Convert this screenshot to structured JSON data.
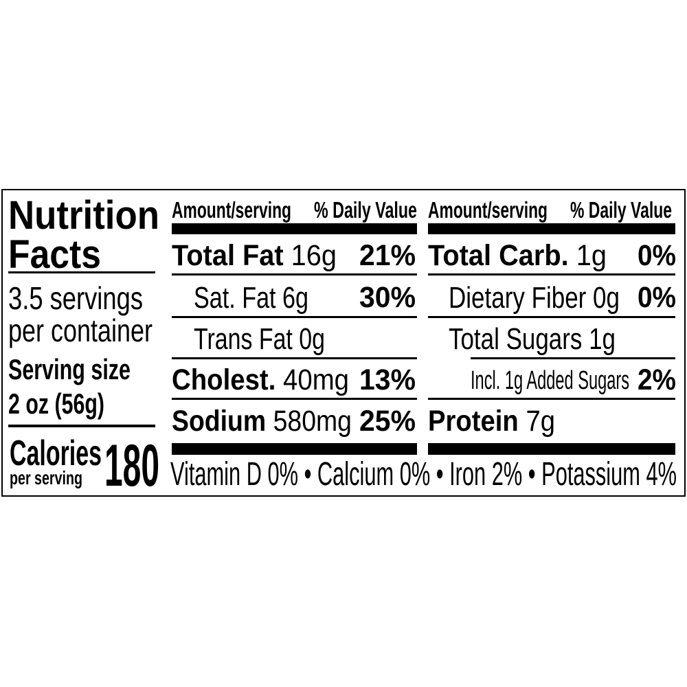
{
  "title": {
    "line1": "Nutrition",
    "line2": "Facts"
  },
  "servings": {
    "count": "3.5 servings",
    "per_container": "per container",
    "size_label": "Serving size",
    "size_value": "2 oz (56g)"
  },
  "calories": {
    "label": "Calories",
    "sub": "per serving",
    "value": "180"
  },
  "header": {
    "amount": "Amount/serving",
    "dv": "% Daily Value"
  },
  "left_nutrients": [
    {
      "name": "Total Fat",
      "amount": " 16g",
      "dv": "21%"
    },
    {
      "name": "Sat. Fat 6g",
      "amount": "",
      "dv": "30%"
    },
    {
      "name": "Trans Fat 0g",
      "amount": "",
      "dv": ""
    },
    {
      "name": "Cholest.",
      "amount": " 40mg",
      "dv": "13%"
    },
    {
      "name": "Sodium",
      "amount": " 580mg",
      "dv": "25%"
    }
  ],
  "right_nutrients": [
    {
      "name": "Total Carb.",
      "amount": " 1g",
      "dv": "0%"
    },
    {
      "name": "Dietary Fiber 0g",
      "amount": "",
      "dv": "0%"
    },
    {
      "name": "Total Sugars 1g",
      "amount": "",
      "dv": ""
    },
    {
      "name": "Incl. 1g Added Sugars",
      "amount": "",
      "dv": "2%"
    },
    {
      "name": "Protein",
      "amount": " 7g",
      "dv": ""
    }
  ],
  "vitamins": "Vitamin D 0% • Calcium 0% • Iron 2% • Potassium 4%"
}
